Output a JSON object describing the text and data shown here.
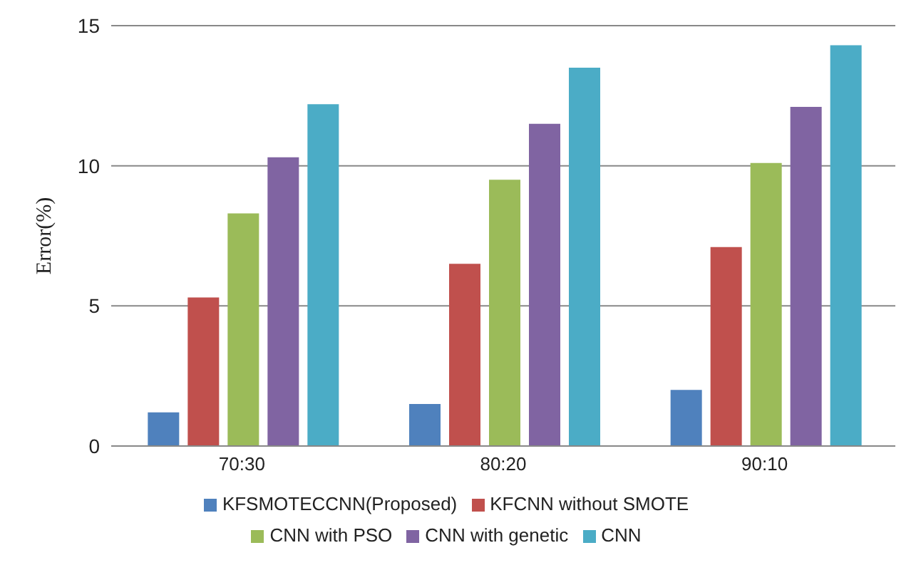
{
  "chart_data": {
    "type": "bar",
    "ylabel": "Error(%)",
    "categories": [
      "70:30",
      "80:20",
      "90:10"
    ],
    "series": [
      {
        "name": "KFSMOTECCNN(Proposed)",
        "color": "#4f81bd",
        "values": [
          1.2,
          1.5,
          2.0
        ]
      },
      {
        "name": "KFCNN without SMOTE",
        "color": "#c0504d",
        "values": [
          5.3,
          6.5,
          7.1
        ]
      },
      {
        "name": "CNN with PSO",
        "color": "#9bbb59",
        "values": [
          8.3,
          9.5,
          10.1
        ]
      },
      {
        "name": "CNN with genetic",
        "color": "#8064a2",
        "values": [
          10.3,
          11.5,
          12.1
        ]
      },
      {
        "name": "CNN",
        "color": "#4bacc6",
        "values": [
          12.2,
          13.5,
          14.3
        ]
      }
    ],
    "ylim": [
      0,
      15
    ],
    "yticks": [
      0,
      5,
      10,
      15
    ],
    "grid": "y",
    "legend": "bottom"
  }
}
